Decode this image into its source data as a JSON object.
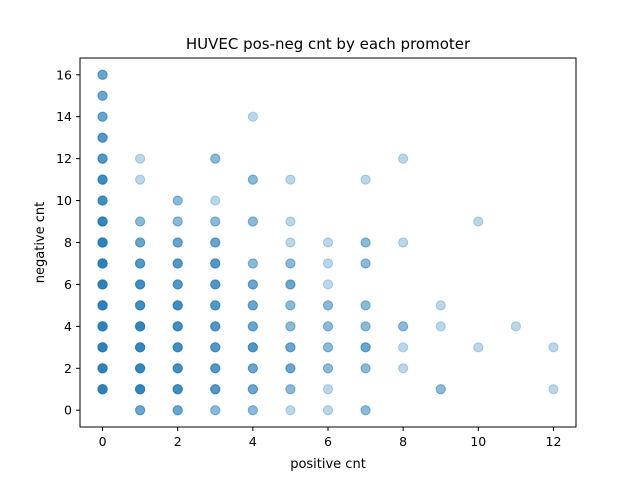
{
  "chart_data": {
    "type": "scatter",
    "title": "HUVEC pos-neg cnt by each promoter",
    "xlabel": "positive cnt",
    "ylabel": "negative cnt",
    "xlim": [
      -0.6,
      12.6
    ],
    "ylim": [
      -0.8,
      16.8
    ],
    "xticks": [
      0,
      2,
      4,
      6,
      8,
      10,
      12
    ],
    "yticks": [
      0,
      2,
      4,
      6,
      8,
      10,
      12,
      14,
      16
    ],
    "grid": false,
    "color": "#1f77b4",
    "alpha": 0.3,
    "points": [
      [
        0,
        1
      ],
      [
        0,
        1
      ],
      [
        0,
        1
      ],
      [
        0,
        1
      ],
      [
        0,
        1
      ],
      [
        0,
        1
      ],
      [
        0,
        1
      ],
      [
        0,
        2
      ],
      [
        0,
        2
      ],
      [
        0,
        2
      ],
      [
        0,
        2
      ],
      [
        0,
        2
      ],
      [
        0,
        2
      ],
      [
        0,
        2
      ],
      [
        0,
        3
      ],
      [
        0,
        3
      ],
      [
        0,
        3
      ],
      [
        0,
        3
      ],
      [
        0,
        3
      ],
      [
        0,
        3
      ],
      [
        0,
        3
      ],
      [
        0,
        4
      ],
      [
        0,
        4
      ],
      [
        0,
        4
      ],
      [
        0,
        4
      ],
      [
        0,
        4
      ],
      [
        0,
        4
      ],
      [
        0,
        4
      ],
      [
        0,
        5
      ],
      [
        0,
        5
      ],
      [
        0,
        5
      ],
      [
        0,
        5
      ],
      [
        0,
        5
      ],
      [
        0,
        5
      ],
      [
        0,
        5
      ],
      [
        0,
        6
      ],
      [
        0,
        6
      ],
      [
        0,
        6
      ],
      [
        0,
        6
      ],
      [
        0,
        6
      ],
      [
        0,
        6
      ],
      [
        0,
        6
      ],
      [
        0,
        7
      ],
      [
        0,
        7
      ],
      [
        0,
        7
      ],
      [
        0,
        7
      ],
      [
        0,
        7
      ],
      [
        0,
        7
      ],
      [
        0,
        7
      ],
      [
        0,
        8
      ],
      [
        0,
        8
      ],
      [
        0,
        8
      ],
      [
        0,
        8
      ],
      [
        0,
        8
      ],
      [
        0,
        8
      ],
      [
        0,
        8
      ],
      [
        0,
        9
      ],
      [
        0,
        9
      ],
      [
        0,
        9
      ],
      [
        0,
        9
      ],
      [
        0,
        9
      ],
      [
        0,
        9
      ],
      [
        0,
        10
      ],
      [
        0,
        10
      ],
      [
        0,
        10
      ],
      [
        0,
        10
      ],
      [
        0,
        10
      ],
      [
        0,
        11
      ],
      [
        0,
        11
      ],
      [
        0,
        11
      ],
      [
        0,
        11
      ],
      [
        0,
        11
      ],
      [
        0,
        12
      ],
      [
        0,
        12
      ],
      [
        0,
        12
      ],
      [
        0,
        12
      ],
      [
        0,
        13
      ],
      [
        0,
        13
      ],
      [
        0,
        13
      ],
      [
        0,
        13
      ],
      [
        0,
        14
      ],
      [
        0,
        14
      ],
      [
        0,
        14
      ],
      [
        0,
        15
      ],
      [
        0,
        15
      ],
      [
        0,
        15
      ],
      [
        0,
        16
      ],
      [
        0,
        16
      ],
      [
        0,
        16
      ],
      [
        1,
        0
      ],
      [
        1,
        0
      ],
      [
        1,
        0
      ],
      [
        1,
        1
      ],
      [
        1,
        1
      ],
      [
        1,
        1
      ],
      [
        1,
        1
      ],
      [
        1,
        1
      ],
      [
        1,
        1
      ],
      [
        1,
        2
      ],
      [
        1,
        2
      ],
      [
        1,
        2
      ],
      [
        1,
        2
      ],
      [
        1,
        2
      ],
      [
        1,
        2
      ],
      [
        1,
        3
      ],
      [
        1,
        3
      ],
      [
        1,
        3
      ],
      [
        1,
        3
      ],
      [
        1,
        3
      ],
      [
        1,
        3
      ],
      [
        1,
        4
      ],
      [
        1,
        4
      ],
      [
        1,
        4
      ],
      [
        1,
        4
      ],
      [
        1,
        4
      ],
      [
        1,
        4
      ],
      [
        1,
        5
      ],
      [
        1,
        5
      ],
      [
        1,
        5
      ],
      [
        1,
        5
      ],
      [
        1,
        5
      ],
      [
        1,
        6
      ],
      [
        1,
        6
      ],
      [
        1,
        6
      ],
      [
        1,
        6
      ],
      [
        1,
        6
      ],
      [
        1,
        7
      ],
      [
        1,
        7
      ],
      [
        1,
        7
      ],
      [
        1,
        7
      ],
      [
        1,
        8
      ],
      [
        1,
        8
      ],
      [
        1,
        8
      ],
      [
        1,
        9
      ],
      [
        1,
        9
      ],
      [
        1,
        11
      ],
      [
        1,
        12
      ],
      [
        2,
        0
      ],
      [
        2,
        0
      ],
      [
        2,
        0
      ],
      [
        2,
        1
      ],
      [
        2,
        1
      ],
      [
        2,
        1
      ],
      [
        2,
        1
      ],
      [
        2,
        1
      ],
      [
        2,
        2
      ],
      [
        2,
        2
      ],
      [
        2,
        2
      ],
      [
        2,
        2
      ],
      [
        2,
        2
      ],
      [
        2,
        3
      ],
      [
        2,
        3
      ],
      [
        2,
        3
      ],
      [
        2,
        3
      ],
      [
        2,
        3
      ],
      [
        2,
        4
      ],
      [
        2,
        4
      ],
      [
        2,
        4
      ],
      [
        2,
        4
      ],
      [
        2,
        4
      ],
      [
        2,
        5
      ],
      [
        2,
        5
      ],
      [
        2,
        5
      ],
      [
        2,
        5
      ],
      [
        2,
        5
      ],
      [
        2,
        6
      ],
      [
        2,
        6
      ],
      [
        2,
        6
      ],
      [
        2,
        6
      ],
      [
        2,
        7
      ],
      [
        2,
        7
      ],
      [
        2,
        7
      ],
      [
        2,
        7
      ],
      [
        2,
        8
      ],
      [
        2,
        8
      ],
      [
        2,
        8
      ],
      [
        2,
        9
      ],
      [
        2,
        9
      ],
      [
        2,
        10
      ],
      [
        2,
        10
      ],
      [
        3,
        0
      ],
      [
        3,
        0
      ],
      [
        3,
        1
      ],
      [
        3,
        1
      ],
      [
        3,
        1
      ],
      [
        3,
        1
      ],
      [
        3,
        2
      ],
      [
        3,
        2
      ],
      [
        3,
        2
      ],
      [
        3,
        2
      ],
      [
        3,
        3
      ],
      [
        3,
        3
      ],
      [
        3,
        3
      ],
      [
        3,
        3
      ],
      [
        3,
        4
      ],
      [
        3,
        4
      ],
      [
        3,
        4
      ],
      [
        3,
        4
      ],
      [
        3,
        5
      ],
      [
        3,
        5
      ],
      [
        3,
        5
      ],
      [
        3,
        5
      ],
      [
        3,
        6
      ],
      [
        3,
        6
      ],
      [
        3,
        6
      ],
      [
        3,
        6
      ],
      [
        3,
        7
      ],
      [
        3,
        7
      ],
      [
        3,
        7
      ],
      [
        3,
        7
      ],
      [
        3,
        8
      ],
      [
        3,
        8
      ],
      [
        3,
        8
      ],
      [
        3,
        9
      ],
      [
        3,
        9
      ],
      [
        3,
        10
      ],
      [
        3,
        12
      ],
      [
        3,
        12
      ],
      [
        4,
        0
      ],
      [
        4,
        0
      ],
      [
        4,
        1
      ],
      [
        4,
        1
      ],
      [
        4,
        1
      ],
      [
        4,
        2
      ],
      [
        4,
        2
      ],
      [
        4,
        2
      ],
      [
        4,
        3
      ],
      [
        4,
        3
      ],
      [
        4,
        3
      ],
      [
        4,
        3
      ],
      [
        4,
        4
      ],
      [
        4,
        4
      ],
      [
        4,
        4
      ],
      [
        4,
        5
      ],
      [
        4,
        5
      ],
      [
        4,
        5
      ],
      [
        4,
        6
      ],
      [
        4,
        6
      ],
      [
        4,
        6
      ],
      [
        4,
        7
      ],
      [
        4,
        7
      ],
      [
        4,
        9
      ],
      [
        4,
        9
      ],
      [
        4,
        11
      ],
      [
        4,
        11
      ],
      [
        4,
        14
      ],
      [
        5,
        0
      ],
      [
        5,
        1
      ],
      [
        5,
        1
      ],
      [
        5,
        2
      ],
      [
        5,
        2
      ],
      [
        5,
        2
      ],
      [
        5,
        3
      ],
      [
        5,
        3
      ],
      [
        5,
        3
      ],
      [
        5,
        4
      ],
      [
        5,
        4
      ],
      [
        5,
        5
      ],
      [
        5,
        5
      ],
      [
        5,
        6
      ],
      [
        5,
        6
      ],
      [
        5,
        6
      ],
      [
        5,
        7
      ],
      [
        5,
        7
      ],
      [
        5,
        8
      ],
      [
        5,
        9
      ],
      [
        5,
        11
      ],
      [
        6,
        0
      ],
      [
        6,
        1
      ],
      [
        6,
        2
      ],
      [
        6,
        2
      ],
      [
        6,
        3
      ],
      [
        6,
        3
      ],
      [
        6,
        4
      ],
      [
        6,
        4
      ],
      [
        6,
        5
      ],
      [
        6,
        5
      ],
      [
        6,
        6
      ],
      [
        6,
        7
      ],
      [
        6,
        8
      ],
      [
        7,
        0
      ],
      [
        7,
        0
      ],
      [
        7,
        2
      ],
      [
        7,
        2
      ],
      [
        7,
        3
      ],
      [
        7,
        3
      ],
      [
        7,
        3
      ],
      [
        7,
        4
      ],
      [
        7,
        4
      ],
      [
        7,
        5
      ],
      [
        7,
        5
      ],
      [
        7,
        7
      ],
      [
        7,
        7
      ],
      [
        7,
        8
      ],
      [
        7,
        8
      ],
      [
        7,
        11
      ],
      [
        8,
        2
      ],
      [
        8,
        3
      ],
      [
        8,
        4
      ],
      [
        8,
        4
      ],
      [
        8,
        8
      ],
      [
        8,
        12
      ],
      [
        9,
        1
      ],
      [
        9,
        1
      ],
      [
        9,
        4
      ],
      [
        9,
        5
      ],
      [
        10,
        3
      ],
      [
        10,
        9
      ],
      [
        11,
        4
      ],
      [
        12,
        1
      ],
      [
        12,
        3
      ]
    ]
  }
}
